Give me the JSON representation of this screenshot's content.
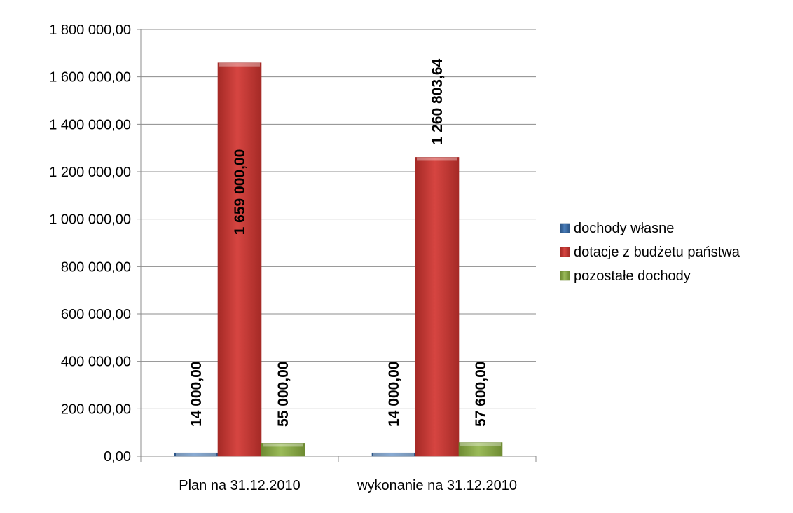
{
  "chart_data": {
    "type": "bar",
    "categories": [
      "Plan na 31.12.2010",
      "wykonanie na 31.12.2010"
    ],
    "series": [
      {
        "name": "dochody własne",
        "values": [
          14000,
          14000
        ],
        "labels": [
          "14 000,00",
          "14 000,00"
        ],
        "color": "#4a7ebb",
        "color_dark": "#2c5687"
      },
      {
        "name": "dotacje z budżetu państwa",
        "values": [
          1659000,
          1260803.64
        ],
        "labels": [
          "1 659 000,00",
          "1 260 803,64"
        ],
        "color": "#d64541",
        "color_dark": "#a52a26"
      },
      {
        "name": "pozostałe dochody",
        "values": [
          55000,
          57600
        ],
        "labels": [
          "55 000,00",
          "57 600,00"
        ],
        "color": "#9bbb59",
        "color_dark": "#6e8b32"
      }
    ],
    "yticks": [
      {
        "value": 0,
        "label": "0,00"
      },
      {
        "value": 200000,
        "label": "200 000,00"
      },
      {
        "value": 400000,
        "label": "400 000,00"
      },
      {
        "value": 600000,
        "label": "600 000,00"
      },
      {
        "value": 800000,
        "label": "800 000,00"
      },
      {
        "value": 1000000,
        "label": "1 000 000,00"
      },
      {
        "value": 1200000,
        "label": "1 200 000,00"
      },
      {
        "value": 1400000,
        "label": "1 400 000,00"
      },
      {
        "value": 1600000,
        "label": "1 600 000,00"
      },
      {
        "value": 1800000,
        "label": "1 800 000,00"
      }
    ],
    "ylim": [
      0,
      1800000
    ],
    "grid": true,
    "legend": "right"
  }
}
